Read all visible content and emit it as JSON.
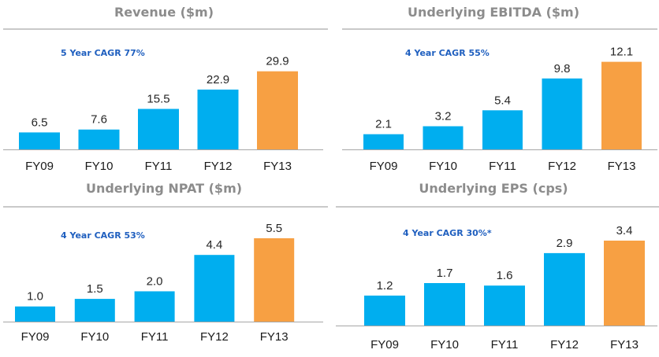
{
  "colors": {
    "past": "#00aeef",
    "latest": "#f7a043",
    "title": "#8c8c8c",
    "cagr": "#1f5fbf",
    "axis": "#a6a6a6"
  },
  "chart_data": [
    {
      "type": "bar",
      "title": "Revenue ($m)",
      "annotation": "5 Year CAGR 77%",
      "categories": [
        "FY09",
        "FY10",
        "FY11",
        "FY12",
        "FY13"
      ],
      "values": [
        6.5,
        7.6,
        15.5,
        22.9,
        29.9
      ],
      "value_labels": [
        "6.5",
        "7.6",
        "15.5",
        "22.9",
        "29.9"
      ],
      "highlight": "FY13",
      "ylim": [
        0,
        31
      ]
    },
    {
      "type": "bar",
      "title": "Underlying EBITDA ($m)",
      "annotation": "4 Year CAGR 55%",
      "categories": [
        "FY09",
        "FY10",
        "FY11",
        "FY12",
        "FY13"
      ],
      "values": [
        2.1,
        3.2,
        5.4,
        9.8,
        12.1
      ],
      "value_labels": [
        "2.1",
        "3.2",
        "5.4",
        "9.8",
        "12.1"
      ],
      "highlight": "FY13",
      "ylim": [
        0,
        12.6
      ]
    },
    {
      "type": "bar",
      "title": "Underlying NPAT ($m)",
      "annotation": "4 Year CAGR 53%",
      "categories": [
        "FY09",
        "FY10",
        "FY11",
        "FY12",
        "FY13"
      ],
      "values": [
        1.0,
        1.5,
        2.0,
        4.4,
        5.5
      ],
      "value_labels": [
        "1.0",
        "1.5",
        "2.0",
        "4.4",
        "5.5"
      ],
      "highlight": "FY13",
      "ylim": [
        0,
        5.5
      ]
    },
    {
      "type": "bar",
      "title": "Underlying EPS (cps)",
      "annotation": "4 Year CAGR 30%*",
      "categories": [
        "FY09",
        "FY10",
        "FY11",
        "FY12",
        "FY13"
      ],
      "values": [
        1.2,
        1.7,
        1.6,
        2.9,
        3.4
      ],
      "value_labels": [
        "1.2",
        "1.7",
        "1.6",
        "2.9",
        "3.4"
      ],
      "highlight": "FY13",
      "ylim": [
        0,
        3.4
      ]
    }
  ]
}
